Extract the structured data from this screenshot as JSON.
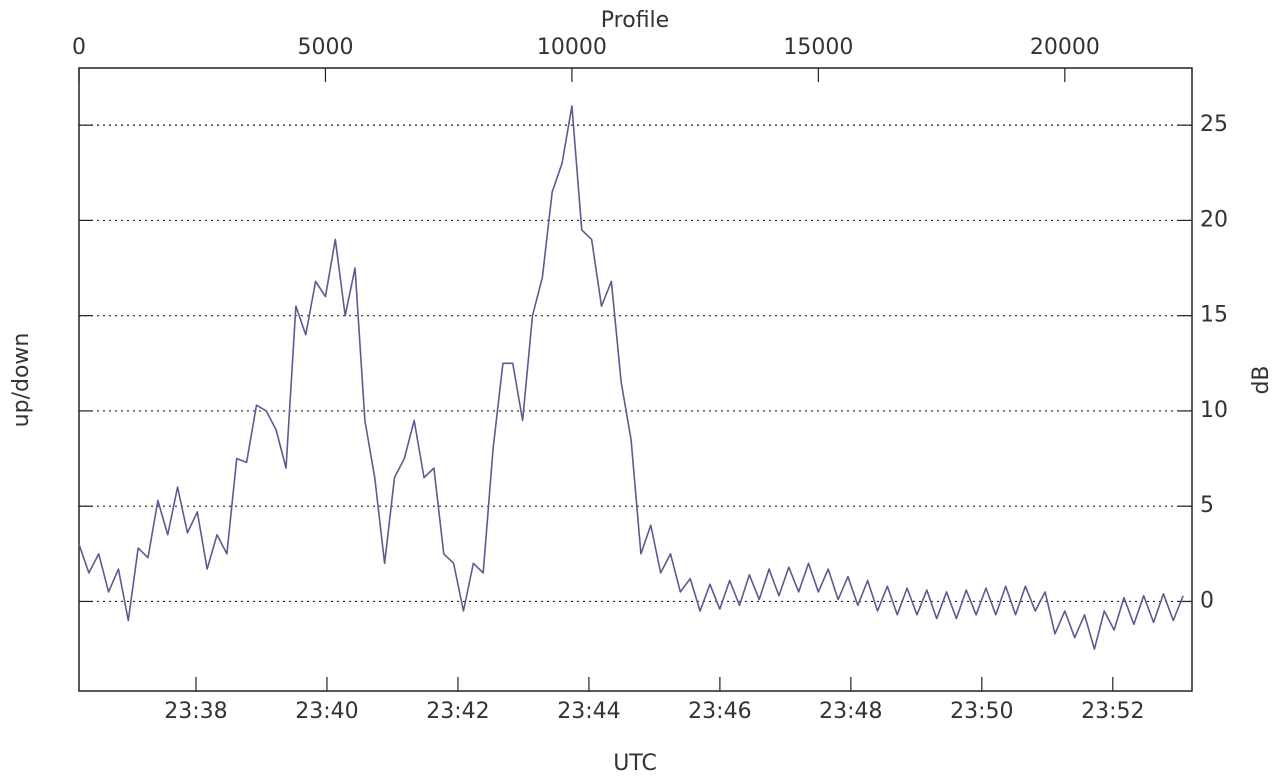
{
  "chart_data": {
    "type": "line",
    "top_axis_label": "Profile",
    "bottom_axis_label": "UTC",
    "left_axis_label": "up/down",
    "right_axis_label": "dB",
    "x": [
      0,
      200,
      400,
      600,
      800,
      1000,
      1200,
      1400,
      1600,
      1800,
      2000,
      2200,
      2400,
      2600,
      2800,
      3000,
      3200,
      3400,
      3600,
      3800,
      4000,
      4200,
      4400,
      4600,
      4800,
      5000,
      5200,
      5400,
      5600,
      5800,
      6000,
      6200,
      6400,
      6600,
      6800,
      7000,
      7200,
      7400,
      7600,
      7800,
      8000,
      8200,
      8400,
      8600,
      8800,
      9000,
      9200,
      9400,
      9600,
      9800,
      10000,
      10200,
      10400,
      10600,
      10800,
      11000,
      11200,
      11400,
      11600,
      11800,
      12000,
      12200,
      12400,
      12600,
      12800,
      13000,
      13200,
      13400,
      13600,
      13800,
      14000,
      14200,
      14400,
      14600,
      14800,
      15000,
      15200,
      15400,
      15600,
      15800,
      16000,
      16200,
      16400,
      16600,
      16800,
      17000,
      17200,
      17400,
      17600,
      17800,
      18000,
      18200,
      18400,
      18600,
      18800,
      19000,
      19200,
      19400,
      19600,
      19800,
      20000,
      20200,
      20400,
      20600,
      20800,
      21000,
      21200,
      21400,
      21600,
      21800,
      22000,
      22200,
      22400
    ],
    "series": [
      {
        "color": "#5b5b92",
        "values": [
          3,
          1.5,
          2.5,
          0.5,
          1.7,
          -1,
          2.8,
          2.3,
          5.3,
          3.5,
          6,
          3.6,
          4.7,
          1.7,
          3.5,
          2.5,
          7.5,
          7.3,
          10.3,
          10,
          9,
          7,
          15.5,
          14,
          16.8,
          16,
          19,
          15,
          17.5,
          9.5,
          6.5,
          2,
          6.5,
          7.5,
          9.5,
          6.5,
          7,
          2.5,
          2,
          -0.5,
          2,
          1.5,
          8,
          12.5,
          12.5,
          9.5,
          15,
          17,
          21.5,
          23,
          26,
          19.5,
          19,
          15.5,
          16.8,
          11.5,
          8.5,
          2.5,
          4,
          1.5,
          2.5,
          0.5,
          1.2,
          -0.5,
          0.9,
          -0.4,
          1.1,
          -0.2,
          1.4,
          0.1,
          1.7,
          0.3,
          1.8,
          0.5,
          2,
          0.5,
          1.7,
          0.1,
          1.3,
          -0.2,
          1.1,
          -0.5,
          0.8,
          -0.7,
          0.7,
          -0.7,
          0.6,
          -0.9,
          0.5,
          -0.9,
          0.6,
          -0.7,
          0.7,
          -0.7,
          0.8,
          -0.7,
          0.8,
          -0.5,
          0.5,
          -1.7,
          -0.5,
          -1.9,
          -0.7,
          -2.5,
          -0.5,
          -1.5,
          0.2,
          -1.2,
          0.3,
          -1.1,
          0.4,
          -1,
          0.3
        ]
      }
    ],
    "xlim": [
      0,
      22580
    ],
    "xticks": [
      0,
      5000,
      10000,
      15000,
      20000
    ],
    "bottom_xticks": [
      {
        "value": 2373,
        "label": "23:38"
      },
      {
        "value": 5030,
        "label": "23:40"
      },
      {
        "value": 7688,
        "label": "23:42"
      },
      {
        "value": 10345,
        "label": "23:44"
      },
      {
        "value": 13002,
        "label": "23:46"
      },
      {
        "value": 15659,
        "label": "23:48"
      },
      {
        "value": 18316,
        "label": "23:50"
      },
      {
        "value": 20973,
        "label": "23:52"
      }
    ],
    "ylim": [
      -4.7,
      28
    ],
    "yticks": [
      0,
      5,
      10,
      15,
      20,
      25
    ],
    "grid": true
  }
}
